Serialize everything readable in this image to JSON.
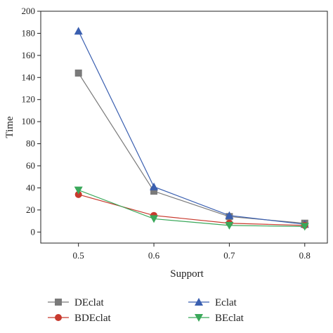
{
  "chart_data": {
    "type": "line",
    "xlabel": "Support",
    "ylabel": "Time",
    "x": [
      0.5,
      0.6,
      0.7,
      0.8
    ],
    "xticks": [
      "0.5",
      "0.6",
      "0.7",
      "0.8"
    ],
    "yticks": [
      "0",
      "20",
      "40",
      "60",
      "80",
      "100",
      "120",
      "140",
      "160",
      "180",
      "200"
    ],
    "xlim": [
      0.45,
      0.83
    ],
    "ylim": [
      -10,
      200
    ],
    "grid": false,
    "legend_position": "bottom",
    "series": [
      {
        "name": "DEclat",
        "values": [
          144,
          37,
          14,
          8
        ],
        "color": "#7a7a7a",
        "marker": "square"
      },
      {
        "name": "Eclat",
        "values": [
          182,
          41,
          15,
          7
        ],
        "color": "#3a5fb0",
        "marker": "triangle-up"
      },
      {
        "name": "BDEclat",
        "values": [
          34,
          15,
          8,
          6
        ],
        "color": "#c83a2e",
        "marker": "circle"
      },
      {
        "name": "BEclat",
        "values": [
          38,
          12,
          6,
          5
        ],
        "color": "#3aa85a",
        "marker": "triangle-down"
      }
    ]
  }
}
